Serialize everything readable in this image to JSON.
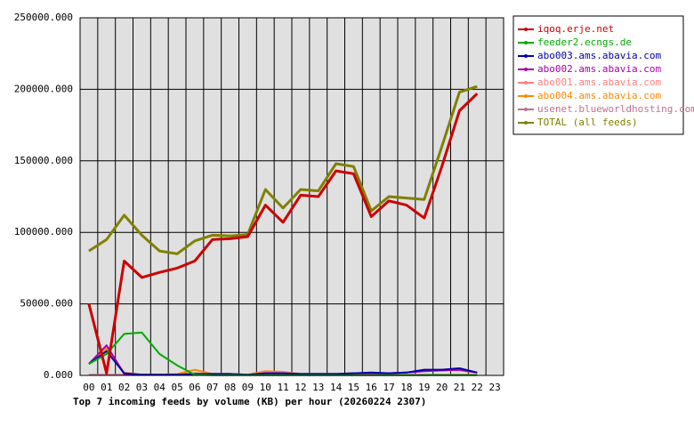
{
  "chart_data": {
    "type": "line",
    "title": "Top 7 incoming feeds by volume (KB) per hour (20260224 2307)",
    "categories": [
      "00",
      "01",
      "02",
      "03",
      "04",
      "05",
      "06",
      "07",
      "08",
      "09",
      "10",
      "11",
      "12",
      "13",
      "14",
      "15",
      "16",
      "17",
      "18",
      "19",
      "20",
      "21",
      "22",
      "23"
    ],
    "ylim": [
      0,
      250000
    ],
    "yticks": [
      {
        "value": 0,
        "label": "0.000"
      },
      {
        "value": 50000,
        "label": "50000.000"
      },
      {
        "value": 100000,
        "label": "100000.000"
      },
      {
        "value": 150000,
        "label": "150000.000"
      },
      {
        "value": 200000,
        "label": "200000.000"
      },
      {
        "value": 250000,
        "label": "250000.000"
      }
    ],
    "grid": true,
    "legend": "right",
    "series": [
      {
        "name": "iqoq.erje.net",
        "color": "#cc0000",
        "values": [
          50000,
          1500,
          80000,
          68500,
          72000,
          75000,
          80000,
          95000,
          95500,
          97000,
          119000,
          107000,
          126000,
          125000,
          143000,
          141000,
          111000,
          122000,
          119000,
          110000,
          146000,
          185000,
          197000,
          null
        ]
      },
      {
        "name": "feeder2.ecngs.de",
        "color": "#00aa00",
        "values": [
          8000,
          15000,
          29000,
          30000,
          15000,
          7000,
          500,
          200,
          200,
          200,
          200,
          200,
          200,
          200,
          200,
          200,
          200,
          200,
          200,
          200,
          200,
          200,
          200,
          null
        ]
      },
      {
        "name": "abo003.ams.abavia.com",
        "color": "#0000aa",
        "values": [
          8000,
          17000,
          1500,
          500,
          500,
          500,
          1000,
          1000,
          1000,
          500,
          1500,
          1500,
          1000,
          1000,
          1000,
          1500,
          2000,
          1500,
          2000,
          4000,
          4000,
          5000,
          2000,
          null
        ]
      },
      {
        "name": "abo002.ams.abavia.com",
        "color": "#aa00aa",
        "values": [
          8000,
          21000,
          1000,
          500,
          500,
          500,
          1000,
          1000,
          1000,
          500,
          1500,
          1500,
          1000,
          1000,
          1000,
          1500,
          1500,
          1500,
          2000,
          3000,
          3500,
          4000,
          2000,
          null
        ]
      },
      {
        "name": "abo001.ams.abavia.com",
        "color": "#ff8080",
        "values": [
          8000,
          17000,
          2000,
          500,
          500,
          500,
          1500,
          1000,
          1000,
          500,
          2000,
          2000,
          1000,
          1000,
          1000,
          1500,
          1500,
          1500,
          2000,
          3000,
          3500,
          3500,
          2000,
          null
        ]
      },
      {
        "name": "abo004.ams.abavia.com",
        "color": "#ff8800",
        "values": [
          8000,
          19000,
          2000,
          500,
          500,
          1000,
          4000,
          1000,
          1000,
          500,
          3000,
          2500,
          1000,
          1000,
          1000,
          1500,
          1500,
          1500,
          2000,
          3500,
          4000,
          3500,
          2000,
          null
        ]
      },
      {
        "name": "usenet.blueworldhosting.com",
        "color": "#c07090",
        "values": [
          500,
          500,
          500,
          500,
          500,
          500,
          500,
          500,
          500,
          500,
          500,
          500,
          500,
          500,
          500,
          500,
          500,
          500,
          500,
          500,
          500,
          500,
          500,
          null
        ]
      },
      {
        "name": "TOTAL (all feeds)",
        "color": "#808000",
        "values": [
          87000,
          95000,
          112000,
          98000,
          87000,
          85000,
          94000,
          98000,
          97500,
          98500,
          130000,
          117000,
          130000,
          129000,
          148000,
          146000,
          115000,
          125000,
          124000,
          123000,
          160000,
          198000,
          202000,
          null
        ]
      }
    ]
  }
}
